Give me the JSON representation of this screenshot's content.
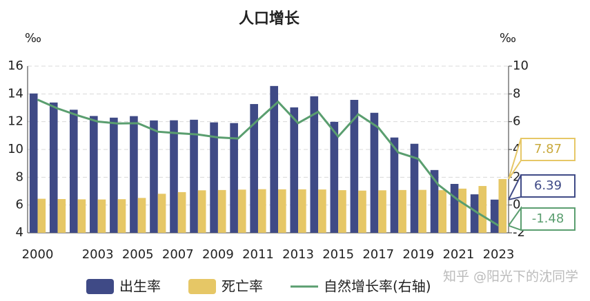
{
  "chart_data": {
    "type": "bar_line",
    "title": "人口增长",
    "y_unit": "‰",
    "y2_unit": "‰",
    "watermark": "知乎 @阳光下的沈同学",
    "categories": [
      "2000",
      null,
      null,
      "2003",
      null,
      "2005",
      null,
      "2007",
      null,
      "2009",
      null,
      "2011",
      null,
      "2013",
      null,
      "2015",
      null,
      "2017",
      null,
      "2019",
      null,
      "2021",
      null,
      "2023"
    ],
    "series": [
      {
        "name": "出生率",
        "type": "bar",
        "color": "#3f4a86",
        "values": [
          14.03,
          13.38,
          12.86,
          12.41,
          12.29,
          12.4,
          12.09,
          12.1,
          12.14,
          11.95,
          11.9,
          13.27,
          14.57,
          13.03,
          13.83,
          11.99,
          13.57,
          12.64,
          10.86,
          10.41,
          8.52,
          7.52,
          6.77,
          6.39
        ]
      },
      {
        "name": "死亡率",
        "type": "bar",
        "color": "#e6c766",
        "values": [
          6.45,
          6.43,
          6.41,
          6.4,
          6.42,
          6.51,
          6.81,
          6.93,
          7.06,
          7.08,
          7.11,
          7.14,
          7.13,
          7.13,
          7.12,
          7.07,
          7.04,
          7.06,
          7.08,
          7.09,
          7.07,
          7.18,
          7.37,
          7.87
        ]
      },
      {
        "name": "自然增长率(右轴)",
        "type": "line",
        "axis": "y2",
        "color": "#5a9e6f",
        "values": [
          7.58,
          6.95,
          6.45,
          6.01,
          5.87,
          5.89,
          5.28,
          5.17,
          5.08,
          4.87,
          4.79,
          6.13,
          7.43,
          5.9,
          6.71,
          4.93,
          6.53,
          5.58,
          3.78,
          3.32,
          1.45,
          0.34,
          -0.6,
          -1.48
        ]
      }
    ],
    "label_last": true,
    "ylim": [
      4,
      16
    ],
    "yticks": [
      4,
      6,
      8,
      10,
      12,
      14,
      16
    ],
    "y2lim": [
      -2,
      10
    ],
    "y2ticks": [
      -2,
      0,
      2,
      4,
      6,
      8,
      10
    ],
    "grid": true
  }
}
